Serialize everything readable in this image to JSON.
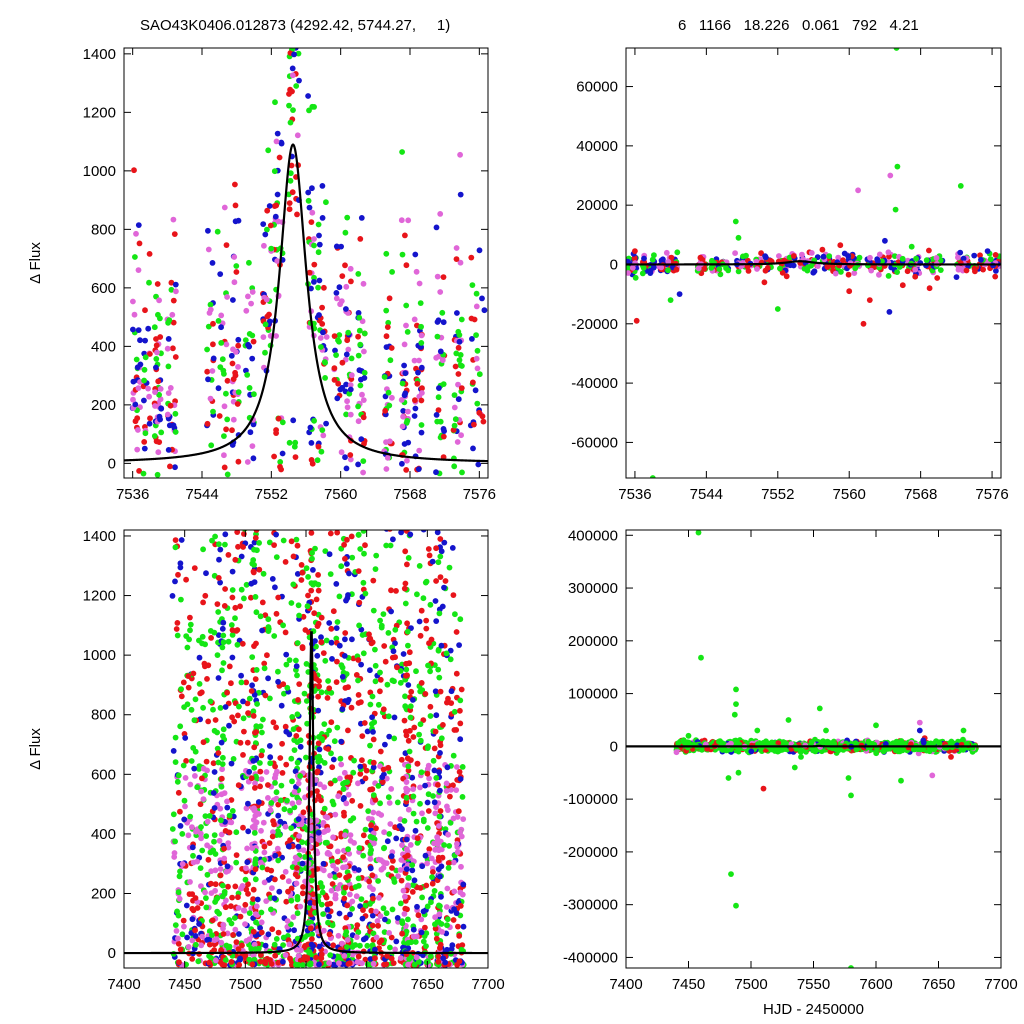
{
  "header": {
    "left": "SAO43K0406.012873 (4292.42, 5744.27,     1)",
    "right": "6   1166   18.226   0.061   792   4.21"
  },
  "colors": {
    "red": "#e8141a",
    "green": "#14e614",
    "blue": "#1414cc",
    "violet": "#e066d8",
    "model": "#000000"
  },
  "chart_data": [
    {
      "type": "scatter",
      "panel": "top-left",
      "xlabel": "",
      "ylabel": "Δ Flux",
      "xlim": [
        7535,
        7577
      ],
      "ylim": [
        -50,
        1420
      ],
      "xticks": [
        7536,
        7544,
        7552,
        7560,
        7568,
        7576
      ],
      "yticks": [
        0,
        200,
        400,
        600,
        800,
        1000,
        1200,
        1400
      ],
      "model": {
        "kind": "peak",
        "t0": 7554.5,
        "amplitude": 1090,
        "width": 1.9
      },
      "clusters": [
        [
          7536.0,
          7536.9
        ],
        [
          7537.2,
          7538.0
        ],
        [
          7538.5,
          7539.3
        ],
        [
          7540.0,
          7541.0
        ],
        [
          7544.5,
          7545.4
        ],
        [
          7545.8,
          7547.0
        ],
        [
          7547.4,
          7548.3
        ],
        [
          7549.0,
          7550.0
        ],
        [
          7551.0,
          7552.0
        ],
        [
          7552.3,
          7553.4
        ],
        [
          7554.0,
          7555.2
        ],
        [
          7556.2,
          7557.0
        ],
        [
          7557.3,
          7558.4
        ],
        [
          7559.2,
          7560.2
        ],
        [
          7560.5,
          7561.3
        ],
        [
          7562.0,
          7562.8
        ],
        [
          7565.0,
          7566.0
        ],
        [
          7567.0,
          7567.8
        ],
        [
          7568.5,
          7569.4
        ],
        [
          7571.0,
          7572.0
        ],
        [
          7573.0,
          7574.0
        ],
        [
          7575.0,
          7576.6
        ]
      ],
      "baseline": [
        200,
        200
      ],
      "n_points": 780,
      "seed": 11
    },
    {
      "type": "scatter",
      "panel": "top-right",
      "xlabel": "",
      "ylabel": "",
      "xlim": [
        7535,
        7577
      ],
      "ylim": [
        -72000,
        73000
      ],
      "xticks": [
        7536,
        7544,
        7552,
        7560,
        7568,
        7576
      ],
      "yticks": [
        -60000,
        -40000,
        -20000,
        0,
        20000,
        40000,
        60000
      ],
      "model": {
        "kind": "peak",
        "t0": 7554.5,
        "amplitude": 1090,
        "width": 1.9
      },
      "clusters": [
        [
          7535.2,
          7536.2
        ],
        [
          7536.8,
          7538.2
        ],
        [
          7538.5,
          7540.8
        ],
        [
          7543.0,
          7544.0
        ],
        [
          7544.5,
          7546.5
        ],
        [
          7547.0,
          7549.0
        ],
        [
          7549.5,
          7551.5
        ],
        [
          7552.0,
          7554.0
        ],
        [
          7554.5,
          7556.5
        ],
        [
          7557.0,
          7559.5
        ],
        [
          7559.7,
          7561.2
        ],
        [
          7562.0,
          7564.0
        ],
        [
          7564.3,
          7566.0
        ],
        [
          7566.5,
          7568.0
        ],
        [
          7568.5,
          7570.5
        ],
        [
          7572.0,
          7573.5
        ],
        [
          7574.0,
          7576.9
        ]
      ],
      "scatter_sd": 1500,
      "outliers": [
        [
          7536.2,
          -19000,
          "red"
        ],
        [
          7536.0,
          4500,
          "red"
        ],
        [
          7538.0,
          -72000,
          "green"
        ],
        [
          7540.0,
          -12000,
          "green"
        ],
        [
          7541.0,
          -10000,
          "blue"
        ],
        [
          7547.3,
          14500,
          "green"
        ],
        [
          7547.6,
          9000,
          "green"
        ],
        [
          7550.5,
          -6000,
          "red"
        ],
        [
          7552.0,
          -15000,
          "green"
        ],
        [
          7553.0,
          -4000,
          "red"
        ],
        [
          7557.0,
          5000,
          "red"
        ],
        [
          7559.0,
          6500,
          "red"
        ],
        [
          7560.0,
          -9000,
          "red"
        ],
        [
          7561.0,
          25000,
          "violet"
        ],
        [
          7561.6,
          -20000,
          "red"
        ],
        [
          7562.3,
          -12000,
          "red"
        ],
        [
          7564.0,
          8000,
          "blue"
        ],
        [
          7564.5,
          -16000,
          "blue"
        ],
        [
          7564.6,
          30000,
          "violet"
        ],
        [
          7565.3,
          73000,
          "green"
        ],
        [
          7565.4,
          33000,
          "green"
        ],
        [
          7565.2,
          18500,
          "green"
        ],
        [
          7566.0,
          -7000,
          "red"
        ],
        [
          7567.0,
          6000,
          "green"
        ],
        [
          7569.0,
          -8000,
          "red"
        ],
        [
          7572.5,
          26500,
          "green"
        ],
        [
          7574.0,
          3000,
          "blue"
        ],
        [
          7575.5,
          4500,
          "blue"
        ]
      ],
      "n_points": 520,
      "seed": 23
    },
    {
      "type": "scatter",
      "panel": "bottom-left",
      "xlabel": "HJD - 2450000",
      "ylabel": "Δ Flux",
      "xlim": [
        7400,
        7700
      ],
      "ylim": [
        -50,
        1420
      ],
      "xticks": [
        7400,
        7450,
        7500,
        7550,
        7600,
        7650,
        7700
      ],
      "yticks": [
        0,
        200,
        400,
        600,
        800,
        1000,
        1200,
        1400
      ],
      "model": {
        "kind": "peak",
        "t0": 7554.5,
        "amplitude": 1090,
        "width": 1.9
      },
      "data_range": [
        7440,
        7680
      ],
      "stripes": [
        7481,
        7508,
        7543,
        7553,
        7555,
        7560,
        7582,
        7605,
        7633,
        7660
      ],
      "n_points": 2600,
      "seed": 37
    },
    {
      "type": "scatter",
      "panel": "bottom-right",
      "xlabel": "HJD - 2450000",
      "ylabel": "",
      "xlim": [
        7400,
        7700
      ],
      "ylim": [
        -420000,
        410000
      ],
      "xticks": [
        7400,
        7450,
        7500,
        7550,
        7600,
        7650,
        7700
      ],
      "yticks": [
        -400000,
        -300000,
        -200000,
        -100000,
        0,
        100000,
        200000,
        300000,
        400000
      ],
      "model": {
        "kind": "peak",
        "t0": 7554.5,
        "amplitude": 1090,
        "width": 1.9
      },
      "data_range": [
        7440,
        7680
      ],
      "scatter_sd": 4500,
      "outliers": [
        [
          7458,
          405000,
          "green"
        ],
        [
          7460,
          168000,
          "green"
        ],
        [
          7484,
          -242000,
          "green"
        ],
        [
          7488,
          -302000,
          "green"
        ],
        [
          7488,
          108000,
          "green"
        ],
        [
          7488,
          80000,
          "green"
        ],
        [
          7487,
          60000,
          "green"
        ],
        [
          7482,
          -60000,
          "green"
        ],
        [
          7490,
          -50000,
          "green"
        ],
        [
          7510,
          -80000,
          "red"
        ],
        [
          7530,
          50000,
          "green"
        ],
        [
          7535,
          -40000,
          "green"
        ],
        [
          7555,
          72000,
          "green"
        ],
        [
          7560,
          30000,
          "green"
        ],
        [
          7580,
          -93000,
          "green"
        ],
        [
          7578,
          -60000,
          "green"
        ],
        [
          7580,
          -420000,
          "green"
        ],
        [
          7600,
          40000,
          "green"
        ],
        [
          7620,
          -65000,
          "green"
        ],
        [
          7635,
          45000,
          "violet"
        ],
        [
          7635,
          30000,
          "blue"
        ],
        [
          7645,
          -55000,
          "violet"
        ],
        [
          7660,
          -20000,
          "red"
        ],
        [
          7670,
          30000,
          "green"
        ],
        [
          7450,
          20000,
          "green"
        ],
        [
          7505,
          30000,
          "green"
        ],
        [
          7540,
          -20000,
          "green"
        ]
      ],
      "n_points": 1400,
      "seed": 53
    }
  ]
}
